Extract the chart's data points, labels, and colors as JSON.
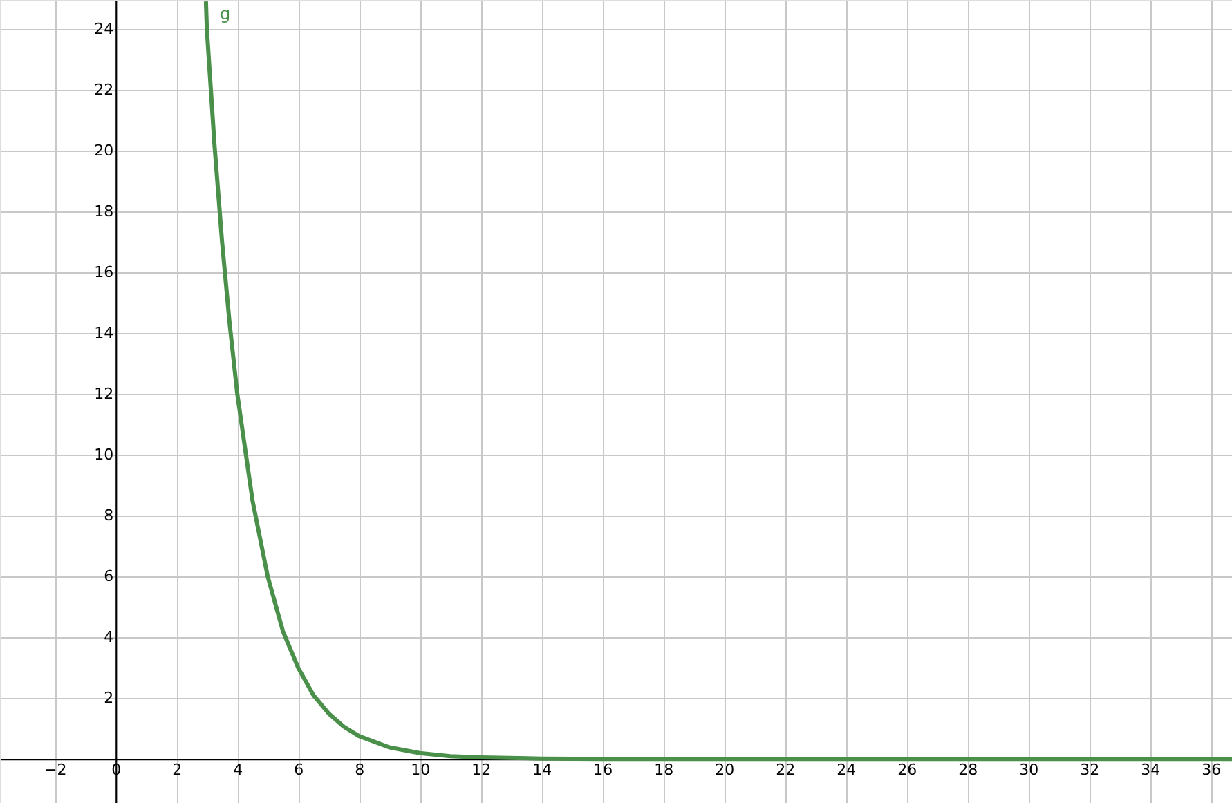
{
  "chart_data": {
    "type": "line",
    "x": [
      2.97,
      3,
      3.25,
      3.5,
      3.75,
      4,
      4.5,
      5,
      5.5,
      6,
      6.5,
      7,
      7.5,
      8,
      9,
      10,
      11,
      12,
      14,
      16,
      20,
      28,
      36.7
    ],
    "series": [
      {
        "color": "#4a8f4a",
        "values": [
          24.9,
          24,
          20.2,
          17,
          14.3,
          12,
          8.5,
          6,
          4.2,
          3,
          2.1,
          1.5,
          1.06,
          0.75,
          0.38,
          0.19,
          0.09,
          0.05,
          0.01,
          0,
          0,
          0,
          0
        ]
      }
    ],
    "annotations": [
      "g"
    ],
    "xlim": [
      -3.8,
      36.7
    ],
    "ylim": [
      -1.45,
      24.95
    ],
    "xticks": [
      -2,
      0,
      2,
      4,
      6,
      8,
      10,
      12,
      14,
      16,
      18,
      20,
      22,
      24,
      26,
      28,
      30,
      32,
      34,
      36
    ],
    "yticks": [
      2,
      4,
      6,
      8,
      10,
      12,
      14,
      16,
      18,
      20,
      22,
      24
    ],
    "grid": true,
    "marker": "none",
    "line_style": "solid"
  }
}
